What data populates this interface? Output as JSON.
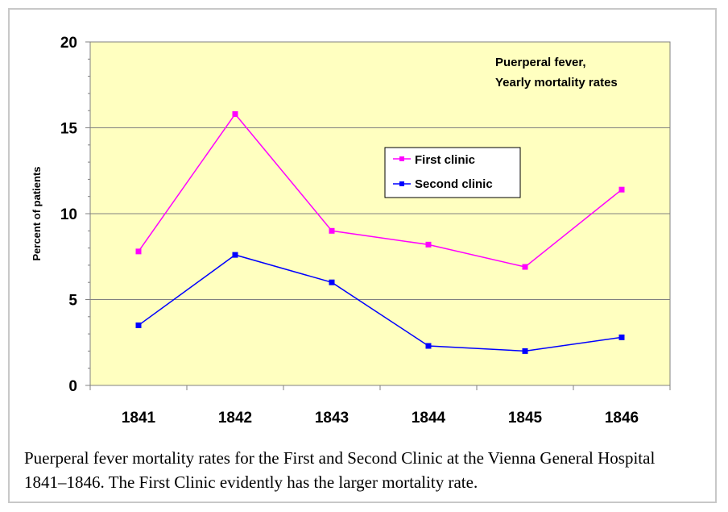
{
  "caption": "Puerperal fever mortality rates for the First and Second Clinic at the Vienna General Hospital 1841–1846. The First Clinic evidently has the larger mortality rate.",
  "chart_data": {
    "type": "line",
    "title_line1": "Puerperal fever,",
    "title_line2": "Yearly mortality rates",
    "xlabel": "",
    "ylabel": "Percent of patients",
    "categories": [
      "1841",
      "1842",
      "1843",
      "1844",
      "1845",
      "1846"
    ],
    "ylim": [
      0,
      20
    ],
    "yticks": [
      "0",
      "5",
      "10",
      "15",
      "20"
    ],
    "grid": true,
    "legend_position": "upper-right",
    "plot_background": "#FFFFC0",
    "series": [
      {
        "name": "First clinic",
        "color": "#FF00FF",
        "values": [
          7.8,
          15.8,
          9.0,
          8.2,
          6.9,
          11.4
        ]
      },
      {
        "name": "Second clinic",
        "color": "#0000FF",
        "values": [
          3.5,
          7.6,
          6.0,
          2.3,
          2.0,
          2.8
        ]
      }
    ]
  }
}
